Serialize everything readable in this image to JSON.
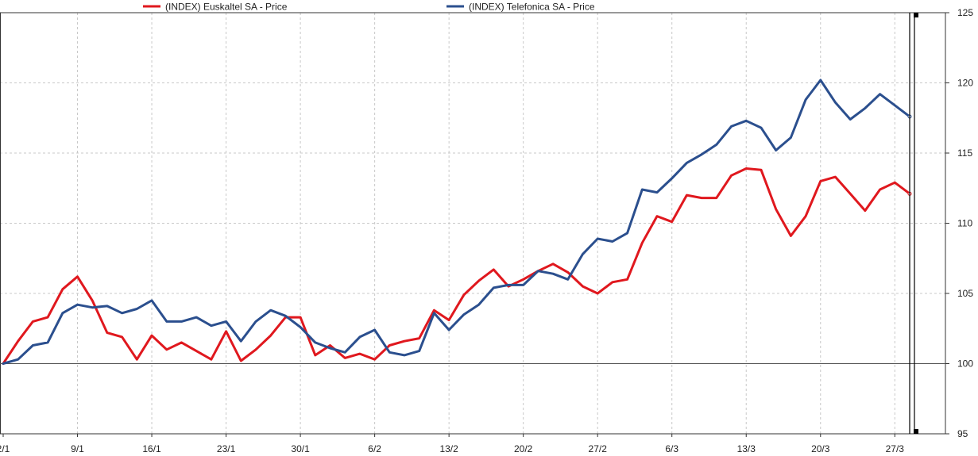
{
  "chart_data": {
    "type": "line",
    "title": "",
    "xlabel": "",
    "ylabel": "",
    "ylim": [
      95,
      125
    ],
    "y_ticks": [
      95,
      100,
      105,
      110,
      115,
      120,
      125
    ],
    "y_axis_side": "right",
    "reference_line": 100,
    "grid": true,
    "legend_position": "top",
    "x_tick_labels": [
      "2/1",
      "9/1",
      "16/1",
      "23/1",
      "30/1",
      "6/2",
      "13/2",
      "20/2",
      "27/2",
      "6/3",
      "13/3",
      "20/3",
      "27/3"
    ],
    "x_tick_indices": [
      0,
      5,
      10,
      15,
      20,
      25,
      30,
      35,
      40,
      45,
      50,
      55,
      60
    ],
    "series": [
      {
        "name": "(INDEX) Euskaltel SA - Price",
        "color": "#e0181e",
        "values": [
          100.0,
          101.6,
          103.0,
          103.3,
          105.3,
          106.2,
          104.5,
          102.2,
          101.9,
          100.3,
          102.0,
          101.0,
          101.5,
          100.9,
          100.3,
          102.3,
          100.2,
          101.0,
          102.0,
          103.3,
          103.3,
          100.6,
          101.3,
          100.4,
          100.7,
          100.3,
          101.3,
          101.6,
          101.8,
          103.8,
          103.1,
          104.9,
          105.9,
          106.7,
          105.5,
          106.0,
          106.6,
          107.1,
          106.5,
          105.5,
          105.0,
          105.8,
          106.0,
          108.6,
          110.5,
          110.1,
          112.0,
          111.8,
          111.8,
          113.4,
          113.9,
          113.8,
          111.0,
          109.1,
          110.5,
          113.0,
          113.3,
          112.1,
          110.9,
          112.4,
          112.9,
          112.1
        ]
      },
      {
        "name": "(INDEX) Telefonica SA - Price",
        "color": "#2b4f8e",
        "values": [
          100.0,
          100.3,
          101.3,
          101.5,
          103.6,
          104.2,
          104.0,
          104.1,
          103.6,
          103.9,
          104.5,
          103.0,
          103.0,
          103.3,
          102.7,
          103.0,
          101.6,
          103.0,
          103.8,
          103.4,
          102.6,
          101.5,
          101.1,
          100.8,
          101.9,
          102.4,
          100.8,
          100.6,
          100.9,
          103.6,
          102.4,
          103.5,
          104.2,
          105.4,
          105.6,
          105.6,
          106.6,
          106.4,
          106.0,
          107.8,
          108.9,
          108.7,
          109.3,
          112.4,
          112.2,
          113.2,
          114.3,
          114.9,
          115.6,
          116.9,
          117.3,
          116.8,
          115.2,
          116.1,
          118.8,
          120.2,
          118.6,
          117.4,
          118.2,
          119.2,
          118.4,
          117.6
        ]
      }
    ]
  }
}
